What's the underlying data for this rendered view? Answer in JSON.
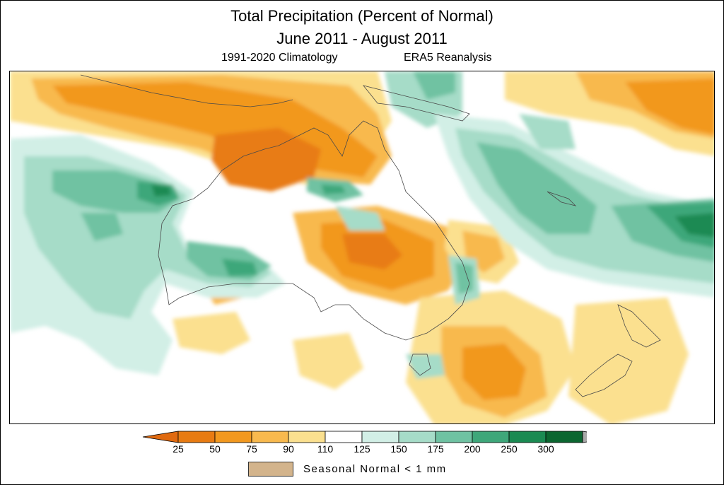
{
  "title": "Total Precipitation (Percent of Normal)",
  "period": "June 2011 - August 2011",
  "climatology": "1991-2020 Climatology",
  "dataset": "ERA5 Reanalysis",
  "colorbar": {
    "ticks": [
      "25",
      "50",
      "75",
      "90",
      "110",
      "125",
      "150",
      "175",
      "200",
      "250",
      "300"
    ],
    "colors": [
      "#e87b12",
      "#f2981e",
      "#f8b94e",
      "#fbe08f",
      "#ffffff",
      "#d2efe6",
      "#a6dcc8",
      "#6fc2a2",
      "#3ea77a",
      "#1a8a52",
      "#0b6630"
    ],
    "under_color": "#e06a10",
    "over_color": "#a9a9a9"
  },
  "legend": {
    "label": "Seasonal Normal < 1 mm",
    "color": "#d3b48c"
  }
}
